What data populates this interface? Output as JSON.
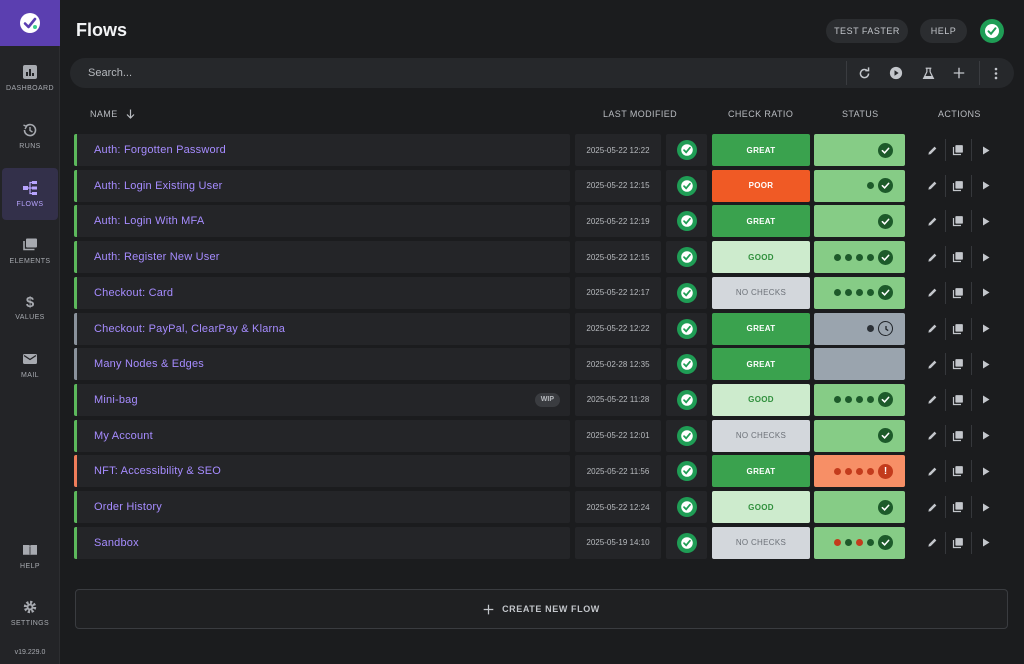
{
  "app": {
    "title": "Flows",
    "version": "v19.229.0"
  },
  "sidebar": {
    "items": [
      {
        "label": "DASHBOARD",
        "icon": "bar-chart-icon"
      },
      {
        "label": "RUNS",
        "icon": "history-icon"
      },
      {
        "label": "FLOWS",
        "icon": "flows-icon",
        "active": true
      },
      {
        "label": "ELEMENTS",
        "icon": "elements-icon"
      },
      {
        "label": "VALUES",
        "icon": "dollar-icon"
      },
      {
        "label": "MAIL",
        "icon": "mail-icon"
      }
    ],
    "bottom": [
      {
        "label": "HELP",
        "icon": "book-icon"
      },
      {
        "label": "SETTINGS",
        "icon": "gear-icon"
      }
    ]
  },
  "header": {
    "test_faster": "TEST FASTER",
    "help": "HELP"
  },
  "search": {
    "placeholder": "Search..."
  },
  "columns": {
    "name": "NAME",
    "last_modified": "LAST MODIFIED",
    "check_ratio": "CHECK RATIO",
    "status": "STATUS",
    "actions": "ACTIONS"
  },
  "colors": {
    "accent": "#5b3fb0",
    "link": "#a68cff",
    "great": "#3aa24e",
    "poor": "#f05a25",
    "good": "#cdebcd",
    "no_checks": "#d3d7dc"
  },
  "flows": [
    {
      "name": "Auth: Forgotten Password",
      "modified": "2025-05-22 12:22",
      "ratio": "GREAT",
      "ratio_kind": "great",
      "status": "green",
      "dots": [],
      "icon": "check",
      "border": "green"
    },
    {
      "name": "Auth: Login Existing User",
      "modified": "2025-05-22 12:15",
      "ratio": "POOR",
      "ratio_kind": "poor",
      "status": "green",
      "dots": [
        "green"
      ],
      "icon": "check",
      "border": "green"
    },
    {
      "name": "Auth: Login With MFA",
      "modified": "2025-05-22 12:19",
      "ratio": "GREAT",
      "ratio_kind": "great",
      "status": "green",
      "dots": [],
      "icon": "check",
      "border": "green"
    },
    {
      "name": "Auth: Register New User",
      "modified": "2025-05-22 12:15",
      "ratio": "GOOD",
      "ratio_kind": "good",
      "status": "green",
      "dots": [
        "green",
        "green",
        "green",
        "green"
      ],
      "icon": "check",
      "border": "green"
    },
    {
      "name": "Checkout: Card",
      "modified": "2025-05-22 12:17",
      "ratio": "NO CHECKS",
      "ratio_kind": "none",
      "status": "green",
      "dots": [
        "green",
        "green",
        "green",
        "green"
      ],
      "icon": "check",
      "border": "green"
    },
    {
      "name": "Checkout: PayPal, ClearPay & Klarna",
      "modified": "2025-05-22 12:22",
      "ratio": "GREAT",
      "ratio_kind": "great",
      "status": "grey",
      "dots": [
        "dark"
      ],
      "icon": "clock",
      "border": "grey"
    },
    {
      "name": "Many Nodes & Edges",
      "modified": "2025-02-28 12:35",
      "ratio": "GREAT",
      "ratio_kind": "great",
      "status": "grey",
      "dots": [],
      "icon": "none",
      "border": "grey"
    },
    {
      "name": "Mini-bag",
      "modified": "2025-05-22 11:28",
      "ratio": "GOOD",
      "ratio_kind": "good",
      "status": "green",
      "dots": [
        "green",
        "green",
        "green",
        "green"
      ],
      "icon": "check",
      "border": "green",
      "badge": "WIP"
    },
    {
      "name": "My Account",
      "modified": "2025-05-22 12:01",
      "ratio": "NO CHECKS",
      "ratio_kind": "none",
      "status": "green",
      "dots": [],
      "icon": "check",
      "border": "green"
    },
    {
      "name": "NFT: Accessibility & SEO",
      "modified": "2025-05-22 11:56",
      "ratio": "GREAT",
      "ratio_kind": "great",
      "status": "orange",
      "dots": [
        "red",
        "red",
        "red",
        "red"
      ],
      "icon": "alert",
      "border": "orange"
    },
    {
      "name": "Order History",
      "modified": "2025-05-22 12:24",
      "ratio": "GOOD",
      "ratio_kind": "good",
      "status": "green",
      "dots": [],
      "icon": "check",
      "border": "green"
    },
    {
      "name": "Sandbox",
      "modified": "2025-05-19 14:10",
      "ratio": "NO CHECKS",
      "ratio_kind": "none",
      "status": "green",
      "dots": [
        "red",
        "green",
        "red",
        "green"
      ],
      "icon": "check",
      "border": "green"
    }
  ],
  "create": {
    "label": "CREATE NEW FLOW"
  }
}
